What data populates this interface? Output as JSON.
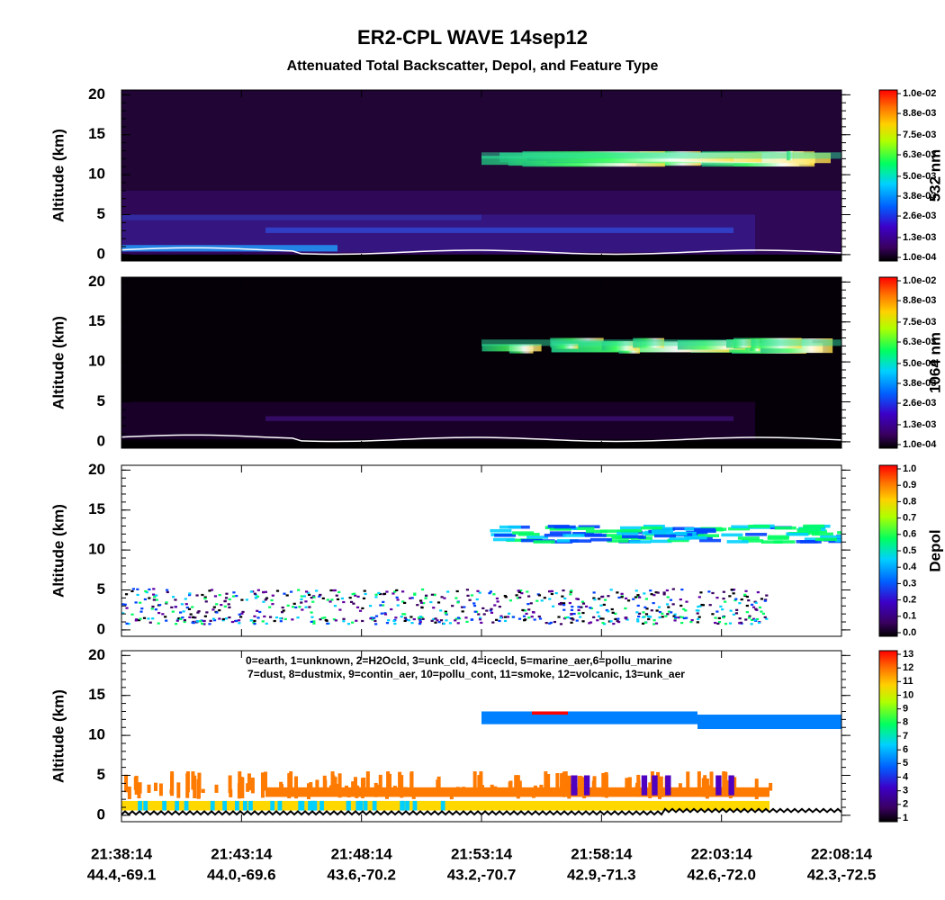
{
  "title": "ER2-CPL WAVE 14sep12",
  "subtitle": "Attenuated Total Backscatter, Depol, and Feature Type",
  "x_labels": [
    {
      "time": "21:38:14",
      "location": "44.4,-69.1"
    },
    {
      "time": "21:43:14",
      "location": "44.0,-69.6"
    },
    {
      "time": "21:48:14",
      "location": "43.6,-70.2"
    },
    {
      "time": "21:53:14",
      "location": "43.2,-70.7"
    },
    {
      "time": "21:58:14",
      "location": "42.9,-71.3"
    },
    {
      "time": "22:03:14",
      "location": "42.6,-72.0"
    },
    {
      "time": "22:08:14",
      "location": "42.3,-72.5"
    }
  ],
  "chart_data": [
    {
      "type": "curtain",
      "ylabel": "Altitude (km)",
      "ylim": [
        -0.8,
        20.6
      ],
      "yticks": [
        0,
        5,
        10,
        15,
        20
      ],
      "colorbar_label": "532 nm",
      "clim": [
        0.0001,
        0.01
      ],
      "cticks": [
        {
          "value": 0.0001,
          "label": "1.0e-04"
        },
        {
          "value": 0.0013,
          "label": "1.3e-03"
        },
        {
          "value": 0.0026,
          "label": "2.6e-03"
        },
        {
          "value": 0.0038,
          "label": "3.8e-03"
        },
        {
          "value": 0.005,
          "label": "5.0e-03"
        },
        {
          "value": 0.0063,
          "label": "6.3e-03"
        },
        {
          "value": 0.0075,
          "label": "7.5e-03"
        },
        {
          "value": 0.0088,
          "label": "8.8e-03"
        },
        {
          "value": 0.01,
          "label": "1.0e-02"
        }
      ]
    },
    {
      "type": "curtain",
      "ylabel": "Altitude (km)",
      "ylim": [
        -0.8,
        20.6
      ],
      "yticks": [
        0,
        5,
        10,
        15,
        20
      ],
      "colorbar_label": "1064 nm",
      "clim": [
        0.0001,
        0.01
      ],
      "cticks": [
        {
          "value": 0.0001,
          "label": "1.0e-04"
        },
        {
          "value": 0.0013,
          "label": "1.3e-03"
        },
        {
          "value": 0.0026,
          "label": "2.6e-03"
        },
        {
          "value": 0.0038,
          "label": "3.8e-03"
        },
        {
          "value": 0.005,
          "label": "5.0e-03"
        },
        {
          "value": 0.0063,
          "label": "6.3e-03"
        },
        {
          "value": 0.0075,
          "label": "7.5e-03"
        },
        {
          "value": 0.0088,
          "label": "8.8e-03"
        },
        {
          "value": 0.01,
          "label": "1.0e-02"
        }
      ]
    },
    {
      "type": "curtain",
      "ylabel": "Altitude (km)",
      "ylim": [
        -0.8,
        20.6
      ],
      "yticks": [
        0,
        5,
        10,
        15,
        20
      ],
      "colorbar_label": "Depol",
      "clim": [
        0,
        1
      ],
      "cticks": [
        {
          "value": 0,
          "label": "0.0"
        },
        0.1,
        0.2,
        0.3,
        0.4,
        0.5,
        0.6,
        0.7,
        0.8,
        0.9,
        {
          "value": 1,
          "label": "1.0"
        }
      ]
    },
    {
      "type": "curtain",
      "ylabel": "Altitude (km)",
      "ylim": [
        -0.8,
        20.6
      ],
      "yticks": [
        0,
        5,
        10,
        15,
        20
      ],
      "annotations": [
        "0=earth, 1=unknown, 2=H2Ocld, 3=unk_cld, 4=icecld, 5=marine_aer,6=pollu_marine",
        "7=dust, 8=dustmix, 9=contin_aer, 10=pollu_cont, 11=smoke, 12=volcanic, 13=unk_aer"
      ],
      "clim": [
        1,
        13
      ],
      "cticks": [
        1,
        2,
        3,
        4,
        5,
        6,
        7,
        8,
        9,
        10,
        11,
        12,
        13
      ]
    }
  ]
}
